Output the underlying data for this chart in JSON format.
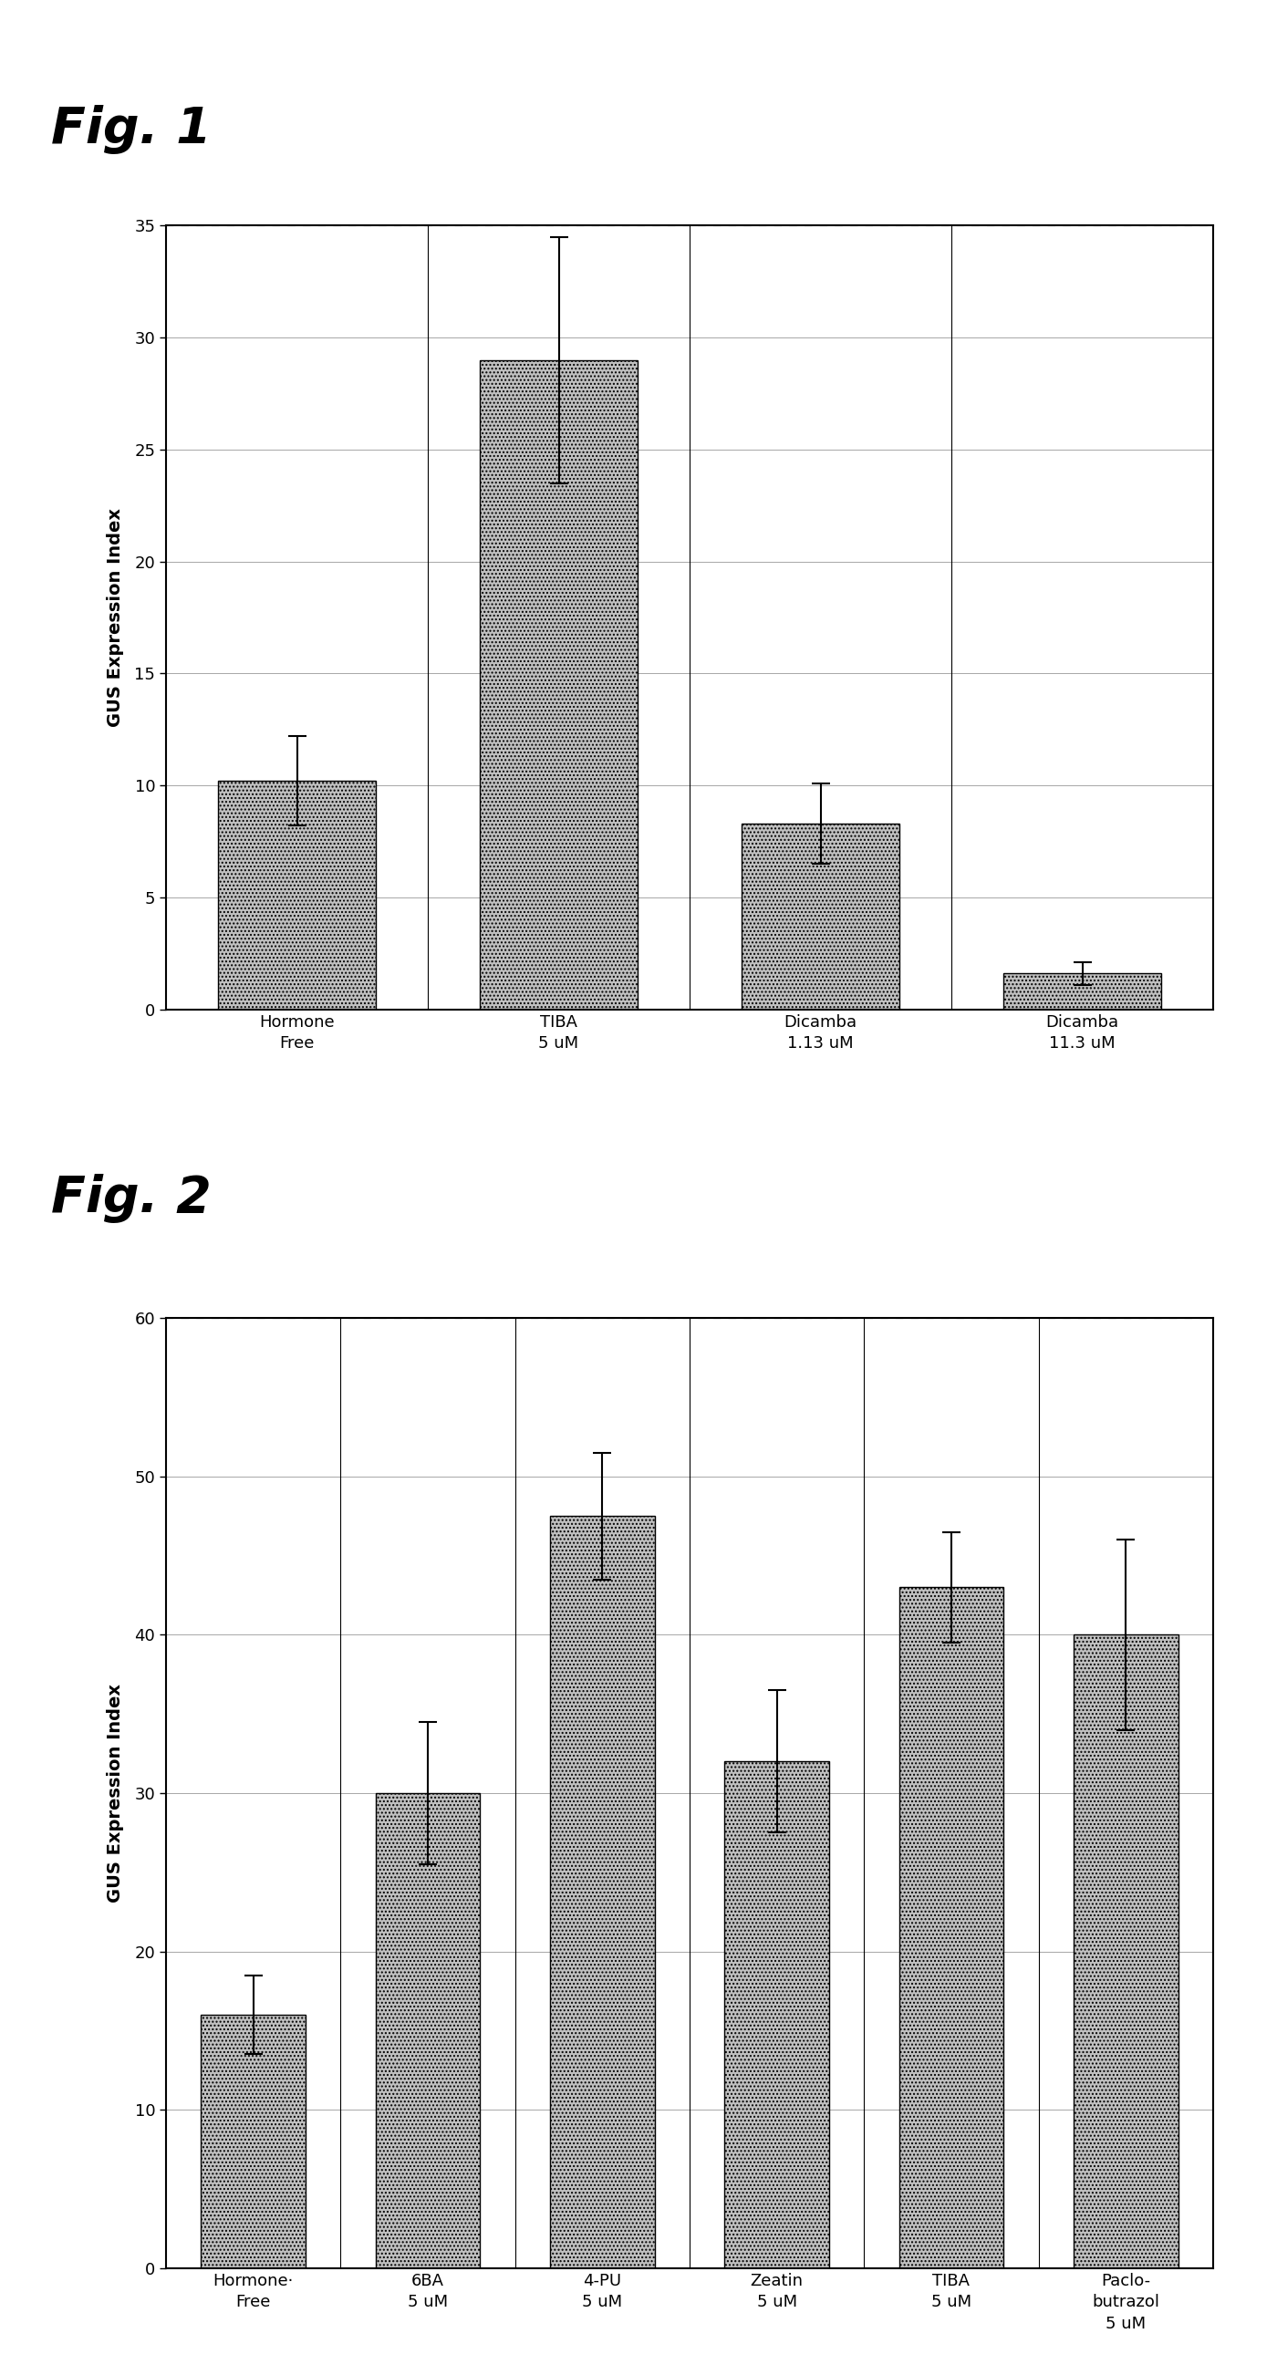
{
  "fig1": {
    "categories": [
      [
        "Hormone",
        "Free"
      ],
      [
        "TIBA",
        "5 uM"
      ],
      [
        "Dicamba",
        "1.13 uM"
      ],
      [
        "Dicamba",
        "11.3 uM"
      ]
    ],
    "values": [
      10.2,
      29.0,
      8.3,
      1.6
    ],
    "errors": [
      2.0,
      5.5,
      1.8,
      0.5
    ],
    "ylabel": "GUS Expression Index",
    "ylim": [
      0,
      35
    ],
    "yticks": [
      0,
      5,
      10,
      15,
      20,
      25,
      30,
      35
    ],
    "label": "Fig. 1",
    "dotted_line_y": 35
  },
  "fig2": {
    "categories": [
      [
        "Hormone·",
        "Free"
      ],
      [
        "6BA",
        "5 uM"
      ],
      [
        "4-PU",
        "5 uM"
      ],
      [
        "Zeatin",
        "5 uM"
      ],
      [
        "TIBA",
        "5 uM"
      ],
      [
        "Paclo-",
        "butrazol",
        "5 uM"
      ]
    ],
    "values": [
      16.0,
      30.0,
      47.5,
      32.0,
      43.0,
      40.0
    ],
    "errors": [
      2.5,
      4.5,
      4.0,
      4.5,
      3.5,
      6.0
    ],
    "ylabel": "GUS Expression Index",
    "ylim": [
      0,
      60
    ],
    "yticks": [
      0,
      10,
      20,
      30,
      40,
      50,
      60
    ],
    "label": "Fig. 2",
    "dotted_line_y": 60
  },
  "bar_color": "#c0c0c0",
  "bar_hatch": "....",
  "background_color": "#ffffff",
  "fig_label_fontsize": 40,
  "axis_label_fontsize": 14,
  "tick_fontsize": 13,
  "xtick_fontsize": 13
}
